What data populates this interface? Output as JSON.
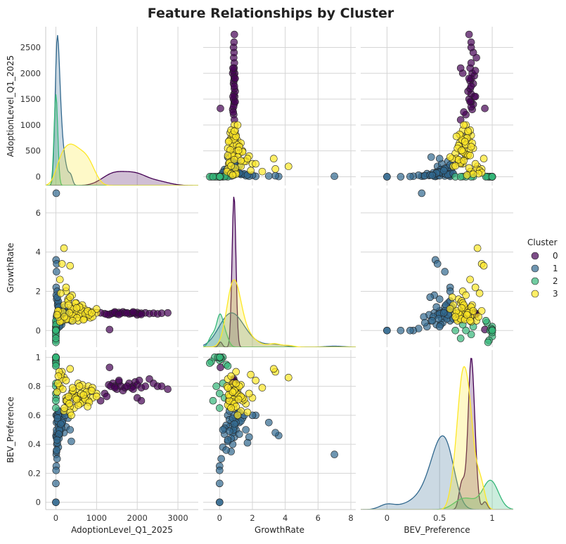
{
  "chart_data": {
    "type": "scatter",
    "title": "Feature Relationships by Cluster",
    "variables": [
      "AdoptionLevel_Q1_2025",
      "GrowthRate",
      "BEV_Preference"
    ],
    "axes": {
      "AdoptionLevel_Q1_2025": {
        "range": [
          -250,
          3500
        ],
        "ticks": [
          0,
          1000,
          2000,
          3000
        ],
        "scatter_range": [
          -170,
          2900
        ],
        "scatter_ticks": [
          0,
          500,
          1000,
          1500,
          2000,
          2500
        ]
      },
      "GrowthRate": {
        "range": [
          -1.0,
          8.3
        ],
        "ticks": [
          0,
          2,
          4,
          6,
          8
        ],
        "scatter_range": [
          -0.85,
          7.25
        ],
        "scatter_ticks": [
          0,
          2,
          4,
          6
        ]
      },
      "BEV_Preference": {
        "range": [
          -0.25,
          1.2
        ],
        "ticks": [
          0.0,
          0.5,
          1.0
        ],
        "scatter_range": [
          -0.05,
          1.05
        ],
        "scatter_ticks": [
          0.0,
          0.2,
          0.4,
          0.6,
          0.8,
          1.0
        ]
      }
    },
    "legend": {
      "title": "Cluster",
      "placement": "right",
      "entries": [
        {
          "label": "0",
          "color": "#440154"
        },
        {
          "label": "1",
          "color": "#31688e"
        },
        {
          "label": "2",
          "color": "#35b779"
        },
        {
          "label": "3",
          "color": "#fde725"
        }
      ]
    },
    "grid": true,
    "series": [
      {
        "cluster": "0",
        "color": "#440154",
        "points": [
          [
            1300,
            0.8,
            0.81
          ],
          [
            1320,
            0.05,
            0.93
          ],
          [
            1400,
            0.88,
            0.82
          ],
          [
            1450,
            0.9,
            0.8
          ],
          [
            1500,
            0.85,
            0.78
          ],
          [
            1550,
            0.92,
            0.83
          ],
          [
            1600,
            0.88,
            0.8
          ],
          [
            1650,
            0.95,
            0.77
          ],
          [
            1700,
            0.9,
            0.79
          ],
          [
            1800,
            0.85,
            0.82
          ],
          [
            1850,
            0.87,
            0.79
          ],
          [
            1900,
            0.9,
            0.8
          ],
          [
            1950,
            0.88,
            0.83
          ],
          [
            2000,
            0.92,
            0.81
          ],
          [
            2000,
            0.8,
            0.72
          ],
          [
            2050,
            0.85,
            0.84
          ],
          [
            2100,
            0.88,
            0.79
          ],
          [
            2200,
            0.9,
            0.8
          ],
          [
            2300,
            0.86,
            0.85
          ],
          [
            2400,
            0.88,
            0.82
          ],
          [
            2500,
            0.85,
            0.8
          ],
          [
            2600,
            0.88,
            0.8
          ],
          [
            2750,
            0.9,
            0.78
          ],
          [
            1350,
            0.85,
            0.8
          ],
          [
            1450,
            0.95,
            0.79
          ],
          [
            1550,
            0.82,
            0.84
          ],
          [
            1750,
            0.9,
            0.8
          ],
          [
            1200,
            0.86,
            0.75
          ],
          [
            1100,
            0.9,
            0.7
          ],
          [
            1250,
            0.83,
            0.73
          ],
          [
            2100,
            0.82,
            0.7
          ],
          [
            1900,
            0.95,
            0.78
          ]
        ]
      },
      {
        "cluster": "1",
        "color": "#31688e",
        "points": [
          [
            10,
            7.0,
            0.33
          ],
          [
            5,
            3.6,
            0.46
          ],
          [
            20,
            3.4,
            0.48
          ],
          [
            15,
            3.0,
            0.55
          ],
          [
            8,
            2.2,
            0.6
          ],
          [
            30,
            2.0,
            0.6
          ],
          [
            10,
            1.8,
            0.45
          ],
          [
            20,
            1.6,
            0.5
          ],
          [
            50,
            1.4,
            0.58
          ],
          [
            60,
            1.2,
            0.55
          ],
          [
            80,
            1.1,
            0.62
          ],
          [
            100,
            1.0,
            0.5
          ],
          [
            40,
            0.9,
            0.45
          ],
          [
            25,
            0.8,
            0.4
          ],
          [
            15,
            0.7,
            0.35
          ],
          [
            70,
            0.9,
            0.52
          ],
          [
            120,
            1.1,
            0.6
          ],
          [
            150,
            0.7,
            0.55
          ],
          [
            200,
            0.8,
            0.48
          ],
          [
            250,
            0.6,
            0.52
          ],
          [
            300,
            1.0,
            0.58
          ],
          [
            350,
            0.85,
            0.5
          ],
          [
            380,
            0.5,
            0.42
          ],
          [
            90,
            0.3,
            0.47
          ],
          [
            60,
            0.2,
            0.38
          ],
          [
            30,
            0.1,
            0.3
          ],
          [
            10,
            0.0,
            0.25
          ],
          [
            5,
            0.0,
            0.22
          ],
          [
            0,
            0.0,
            0.13
          ],
          [
            0,
            0.0,
            0.0
          ],
          [
            0,
            0.0,
            0.0
          ],
          [
            110,
            0.5,
            0.6
          ],
          [
            130,
            0.4,
            0.53
          ],
          [
            170,
            0.6,
            0.57
          ],
          [
            210,
            1.2,
            0.62
          ],
          [
            45,
            1.3,
            0.56
          ],
          [
            75,
            0.7,
            0.44
          ],
          [
            140,
            0.3,
            0.51
          ],
          [
            95,
            0.6,
            0.49
          ],
          [
            55,
            1.5,
            0.6
          ],
          [
            20,
            0.4,
            0.36
          ],
          [
            35,
            1.7,
            0.41
          ],
          [
            160,
            1.0,
            0.55
          ],
          [
            230,
            0.9,
            0.6
          ],
          [
            85,
            0.2,
            0.5
          ],
          [
            40,
            0.8,
            0.58
          ],
          [
            70,
            1.2,
            0.47
          ],
          [
            120,
            0.9,
            0.54
          ],
          [
            60,
            0.6,
            0.63
          ],
          [
            28,
            0.5,
            0.43
          ]
        ]
      },
      {
        "cluster": "2",
        "color": "#35b779",
        "points": [
          [
            0,
            0.0,
            1.0
          ],
          [
            0,
            -0.3,
            1.0
          ],
          [
            0,
            0.2,
            1.0
          ],
          [
            0,
            -0.5,
            0.97
          ],
          [
            0,
            0.0,
            0.98
          ],
          [
            5,
            0.4,
            0.95
          ],
          [
            0,
            -0.1,
            1.0
          ],
          [
            2,
            0.1,
            0.99
          ],
          [
            0,
            -0.6,
            0.96
          ],
          [
            0,
            0.5,
            0.94
          ],
          [
            3,
            0.2,
            0.82
          ],
          [
            0,
            -0.2,
            0.8
          ],
          [
            0,
            0.0,
            0.75
          ],
          [
            4,
            0.3,
            0.72
          ],
          [
            0,
            0.0,
            0.65
          ],
          [
            0,
            -0.4,
            0.7
          ],
          [
            1,
            0.05,
            1.0
          ],
          [
            0,
            0.0,
            1.0
          ]
        ]
      },
      {
        "cluster": "3",
        "color": "#fde725",
        "points": [
          [
            200,
            4.2,
            0.86
          ],
          [
            150,
            3.4,
            0.9
          ],
          [
            350,
            3.3,
            0.92
          ],
          [
            100,
            2.6,
            0.79
          ],
          [
            250,
            2.0,
            0.72
          ],
          [
            400,
            1.8,
            0.75
          ],
          [
            300,
            1.6,
            0.68
          ],
          [
            500,
            1.4,
            0.7
          ],
          [
            600,
            1.2,
            0.73
          ],
          [
            700,
            1.1,
            0.78
          ],
          [
            800,
            1.0,
            0.8
          ],
          [
            900,
            0.95,
            0.72
          ],
          [
            1000,
            0.9,
            0.75
          ],
          [
            450,
            0.85,
            0.65
          ],
          [
            550,
            0.8,
            0.82
          ],
          [
            650,
            0.75,
            0.69
          ],
          [
            750,
            0.7,
            0.74
          ],
          [
            850,
            0.65,
            0.77
          ],
          [
            350,
            0.6,
            0.66
          ],
          [
            250,
            0.55,
            0.7
          ],
          [
            150,
            0.5,
            0.85
          ],
          [
            100,
            0.45,
            0.8
          ],
          [
            200,
            1.3,
            0.63
          ],
          [
            300,
            1.5,
            0.71
          ],
          [
            400,
            0.9,
            0.76
          ],
          [
            500,
            1.0,
            0.78
          ],
          [
            600,
            0.8,
            0.68
          ],
          [
            700,
            0.6,
            0.72
          ],
          [
            800,
            0.9,
            0.7
          ],
          [
            900,
            0.7,
            0.79
          ],
          [
            1000,
            1.1,
            0.73
          ],
          [
            450,
            1.2,
            0.74
          ],
          [
            550,
            0.5,
            0.67
          ],
          [
            650,
            1.3,
            0.81
          ],
          [
            750,
            0.95,
            0.76
          ],
          [
            350,
            1.7,
            0.62
          ],
          [
            250,
            2.2,
            0.84
          ],
          [
            120,
            1.9,
            0.88
          ],
          [
            80,
            1.0,
            0.9
          ],
          [
            60,
            0.7,
            0.87
          ],
          [
            380,
            1.1,
            0.6
          ],
          [
            420,
            0.75,
            0.77
          ],
          [
            520,
            0.65,
            0.73
          ],
          [
            620,
            1.05,
            0.75
          ],
          [
            720,
            0.85,
            0.71
          ],
          [
            820,
            0.8,
            0.69
          ],
          [
            170,
            0.95,
            0.78
          ],
          [
            270,
            0.6,
            0.7
          ],
          [
            330,
            0.9,
            0.68
          ],
          [
            480,
            1.4,
            0.72
          ],
          [
            580,
            1.2,
            0.8
          ],
          [
            680,
            0.55,
            0.74
          ],
          [
            780,
            1.0,
            0.66
          ],
          [
            880,
            0.9,
            0.77
          ],
          [
            50,
            1.0,
            0.82
          ],
          [
            30,
            0.8,
            0.76
          ],
          [
            210,
            0.7,
            0.65
          ],
          [
            310,
            1.3,
            0.73
          ],
          [
            410,
            0.5,
            0.79
          ],
          [
            510,
            1.15,
            0.71
          ]
        ]
      }
    ]
  }
}
